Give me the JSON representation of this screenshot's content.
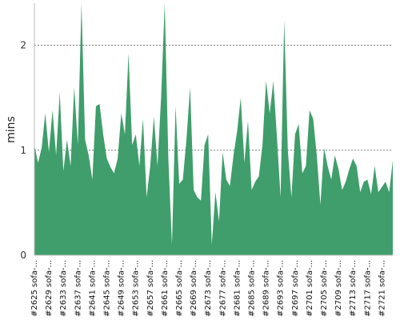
{
  "chart_data": {
    "type": "area",
    "title": "",
    "xlabel": "",
    "ylabel": "mins",
    "ylim": [
      0,
      2.4
    ],
    "yticks": [
      0,
      1,
      2
    ],
    "grid": "horizontal dashed at 1 and 2",
    "color": "#3f9e6b",
    "x_start": 2625,
    "x_label_suffix": " sofa-...",
    "x_label_step": 4,
    "series": [
      {
        "values": [
          1.05,
          0.88,
          1.02,
          1.35,
          0.98,
          1.38,
          0.95,
          1.55,
          0.8,
          1.1,
          0.85,
          1.6,
          1.05,
          2.4,
          1.1,
          0.95,
          0.72,
          1.42,
          1.44,
          1.15,
          0.92,
          0.84,
          0.78,
          0.92,
          1.35,
          1.15,
          1.92,
          1.05,
          1.15,
          0.85,
          1.3,
          0.55,
          0.85,
          1.32,
          0.85,
          1.5,
          2.4,
          0.92,
          0.1,
          1.42,
          0.68,
          0.72,
          1.1,
          1.6,
          0.62,
          0.55,
          0.52,
          1.05,
          1.15,
          0.1,
          0.6,
          0.32,
          0.98,
          0.72,
          0.66,
          0.95,
          1.18,
          1.5,
          0.88,
          1.28,
          0.62,
          0.7,
          0.75,
          1.05,
          1.66,
          1.35,
          1.66,
          1.12,
          0.55,
          2.24,
          1.0,
          0.55,
          1.15,
          1.25,
          0.78,
          0.85,
          1.38,
          1.3,
          0.95,
          0.48,
          1.02,
          0.85,
          0.72,
          0.95,
          0.82,
          0.62,
          0.7,
          0.82,
          0.92,
          0.85,
          0.6,
          0.7,
          0.72,
          0.58,
          0.85,
          0.6,
          0.65,
          0.7,
          0.6,
          0.9
        ]
      }
    ]
  }
}
